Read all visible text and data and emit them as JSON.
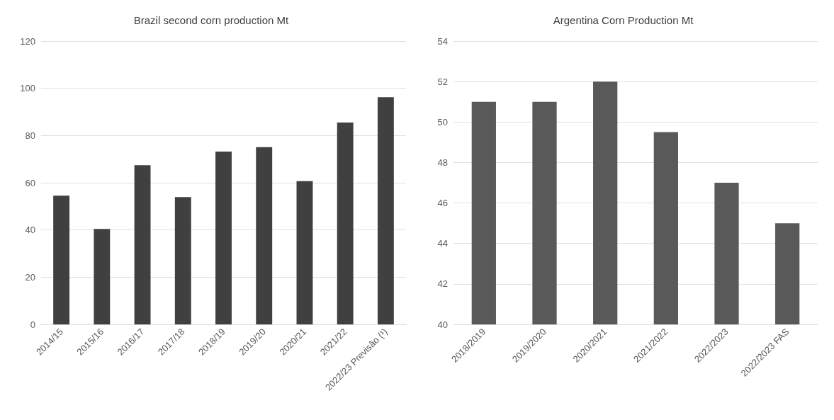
{
  "chart_data": [
    {
      "type": "bar",
      "title": "Brazil second corn production Mt",
      "categories": [
        "2014/15",
        "2015/16",
        "2016/17",
        "2017/18",
        "2018/19",
        "2019/20",
        "2020/21",
        "2021/22",
        "2022/23 Previsão (¹)"
      ],
      "values": [
        54.5,
        40.4,
        67.4,
        53.9,
        73.2,
        75.1,
        60.7,
        85.5,
        96.2
      ],
      "color": "#404040",
      "ylim": [
        0,
        120
      ],
      "yticks": [
        0,
        20,
        40,
        60,
        80,
        100,
        120
      ],
      "grid": "y"
    },
    {
      "type": "bar",
      "title": "Argentina Corn Production Mt",
      "categories": [
        "2018/2019",
        "2019/2020",
        "2020/2021",
        "2021/2022",
        "2022/2023",
        "2022/2023 FAS"
      ],
      "values": [
        51,
        51,
        52,
        49.5,
        47,
        45
      ],
      "color": "#595959",
      "ylim": [
        40,
        54
      ],
      "yticks": [
        40,
        42,
        44,
        46,
        48,
        50,
        52,
        54
      ],
      "grid": "y"
    }
  ]
}
